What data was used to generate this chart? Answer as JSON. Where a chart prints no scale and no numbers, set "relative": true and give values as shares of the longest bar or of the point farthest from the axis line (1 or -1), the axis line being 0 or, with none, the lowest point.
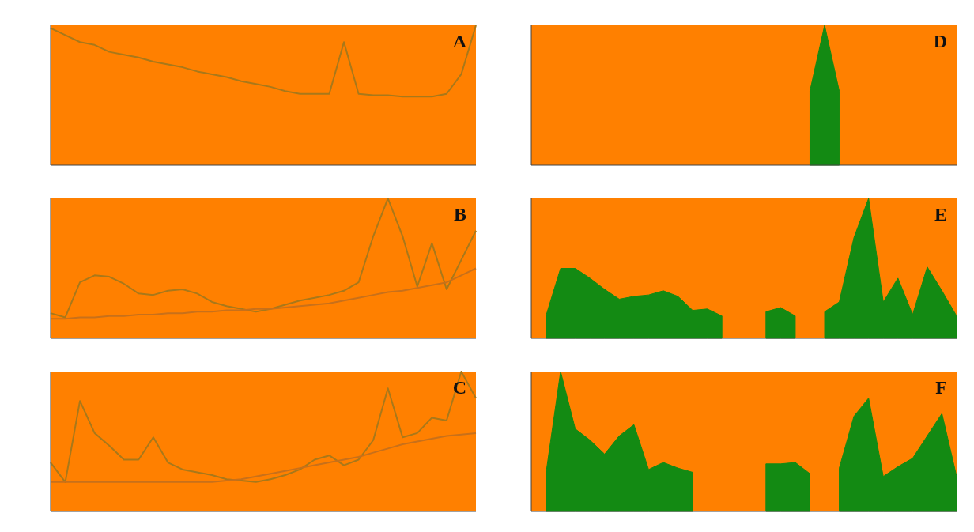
{
  "chart_data": [
    {
      "type": "line",
      "title": "A",
      "relative": true,
      "categories": [
        null,
        null,
        null,
        null,
        null,
        null,
        null,
        null,
        null,
        null,
        null,
        null,
        null,
        null,
        null,
        null,
        null,
        null,
        null,
        null,
        null,
        null,
        null,
        null,
        null,
        null,
        null,
        null,
        null,
        null
      ],
      "series": [
        {
          "color": "#a8781a",
          "values": [
            0.98,
            0.93,
            0.88,
            0.86,
            0.81,
            0.79,
            0.77,
            0.74,
            0.72,
            0.7,
            0.67,
            0.65,
            0.63,
            0.6,
            0.58,
            0.56,
            0.53,
            0.51,
            0.51,
            0.51,
            0.88,
            0.51,
            0.5,
            0.5,
            0.49,
            0.49,
            0.49,
            0.51,
            0.65,
            1
          ]
        }
      ]
    },
    {
      "type": "area",
      "title": "D",
      "relative": true,
      "categories": [
        null,
        null,
        null,
        null,
        null,
        null,
        null,
        null,
        null,
        null,
        null,
        null,
        null,
        null,
        null,
        null,
        null,
        null,
        null,
        null,
        null,
        null,
        null,
        null,
        null,
        null,
        null,
        null,
        null,
        null
      ],
      "series": [
        {
          "color": "#138a13",
          "values": [
            null,
            null,
            null,
            null,
            null,
            null,
            null,
            null,
            null,
            null,
            null,
            null,
            null,
            null,
            null,
            null,
            null,
            null,
            null,
            0.53,
            1,
            0.53,
            null,
            null,
            null,
            null,
            null,
            null,
            null,
            null
          ]
        }
      ]
    },
    {
      "type": "line",
      "title": "B",
      "relative": true,
      "categories": [
        null,
        null,
        null,
        null,
        null,
        null,
        null,
        null,
        null,
        null,
        null,
        null,
        null,
        null,
        null,
        null,
        null,
        null,
        null,
        null,
        null,
        null,
        null,
        null,
        null,
        null,
        null,
        null,
        null,
        null
      ],
      "series": [
        {
          "color": "#a8781a",
          "values": [
            0.18,
            0.15,
            0.4,
            0.45,
            0.44,
            0.39,
            0.32,
            0.31,
            0.34,
            0.35,
            0.32,
            0.26,
            0.23,
            0.21,
            0.19,
            0.21,
            0.24,
            0.27,
            0.29,
            0.31,
            0.34,
            0.4,
            0.73,
            1,
            0.73,
            0.37,
            0.68,
            0.35,
            0.56,
            0.77
          ]
        },
        {
          "color": "#c8701a",
          "values": [
            0.14,
            0.14,
            0.15,
            0.15,
            0.16,
            0.16,
            0.17,
            0.17,
            0.18,
            0.18,
            0.19,
            0.19,
            0.2,
            0.2,
            0.21,
            0.21,
            0.22,
            0.23,
            0.24,
            0.25,
            0.27,
            0.29,
            0.31,
            0.33,
            0.34,
            0.36,
            0.38,
            0.4,
            0.45,
            0.5
          ]
        }
      ]
    },
    {
      "type": "area",
      "title": "E",
      "relative": true,
      "categories": [
        null,
        null,
        null,
        null,
        null,
        null,
        null,
        null,
        null,
        null,
        null,
        null,
        null,
        null,
        null,
        null,
        null,
        null,
        null,
        null,
        null,
        null,
        null,
        null,
        null,
        null,
        null,
        null,
        null,
        null
      ],
      "series": [
        {
          "color": "#138a13",
          "values": [
            null,
            0.16,
            0.5,
            0.5,
            0.43,
            0.35,
            0.28,
            0.3,
            0.31,
            0.34,
            0.3,
            0.2,
            0.21,
            0.16,
            null,
            null,
            0.19,
            0.22,
            0.16,
            null,
            0.19,
            0.26,
            0.72,
            1,
            0.26,
            0.43,
            0.17,
            0.51,
            0.34,
            0.16
          ]
        }
      ]
    },
    {
      "type": "line",
      "title": "C",
      "relative": true,
      "categories": [
        null,
        null,
        null,
        null,
        null,
        null,
        null,
        null,
        null,
        null,
        null,
        null,
        null,
        null,
        null,
        null,
        null,
        null,
        null,
        null,
        null,
        null,
        null,
        null,
        null,
        null,
        null,
        null,
        null,
        null
      ],
      "series": [
        {
          "color": "#a8781a",
          "values": [
            0.35,
            0.21,
            0.79,
            0.56,
            0.47,
            0.37,
            0.37,
            0.53,
            0.35,
            0.3,
            0.28,
            0.26,
            0.23,
            0.22,
            0.21,
            0.23,
            0.26,
            0.3,
            0.37,
            0.4,
            0.33,
            0.37,
            0.51,
            0.88,
            0.53,
            0.56,
            0.67,
            0.65,
            1,
            0.81
          ]
        },
        {
          "color": "#c8701a",
          "values": [
            0.21,
            0.21,
            0.21,
            0.21,
            0.21,
            0.21,
            0.21,
            0.21,
            0.21,
            0.21,
            0.21,
            0.21,
            0.22,
            0.23,
            0.25,
            0.27,
            0.29,
            0.31,
            0.33,
            0.35,
            0.37,
            0.39,
            0.42,
            0.45,
            0.48,
            0.5,
            0.52,
            0.54,
            0.55,
            0.56
          ]
        }
      ]
    },
    {
      "type": "area",
      "title": "F",
      "relative": true,
      "categories": [
        null,
        null,
        null,
        null,
        null,
        null,
        null,
        null,
        null,
        null,
        null,
        null,
        null,
        null,
        null,
        null,
        null,
        null,
        null,
        null,
        null,
        null,
        null,
        null,
        null,
        null,
        null,
        null,
        null,
        null
      ],
      "series": [
        {
          "color": "#138a13",
          "values": [
            null,
            0.27,
            1,
            0.59,
            0.51,
            0.41,
            0.54,
            0.62,
            0.3,
            0.35,
            0.31,
            0.28,
            null,
            null,
            null,
            null,
            0.34,
            0.34,
            0.35,
            0.27,
            null,
            0.31,
            0.68,
            0.81,
            0.25,
            0.32,
            0.38,
            0.54,
            0.7,
            0.25
          ]
        }
      ]
    }
  ]
}
